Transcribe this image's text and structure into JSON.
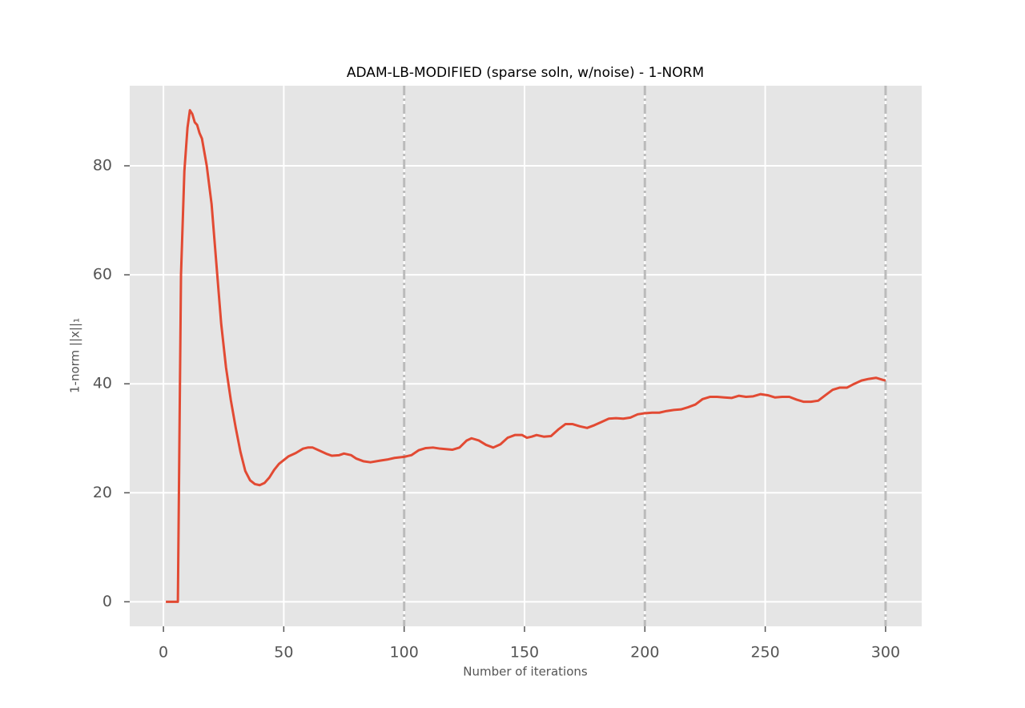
{
  "chart_data": {
    "type": "line",
    "title": "ADAM-LB-MODIFIED (sparse soln, w/noise) - 1-NORM",
    "xlabel": "Number of iterations",
    "ylabel": "1-norm ||x||₁",
    "x": [
      1,
      6,
      7.3,
      8.7,
      10,
      11,
      12,
      13,
      14,
      15,
      16,
      18,
      20,
      22,
      24,
      26,
      28,
      30,
      32,
      34,
      36,
      38,
      40,
      42,
      44,
      46,
      48,
      50,
      52,
      55,
      58,
      60,
      62,
      65,
      68,
      70,
      73,
      75,
      78,
      80,
      83,
      86,
      90,
      93,
      96,
      100,
      103,
      106,
      109,
      112,
      115,
      120,
      123,
      126,
      128,
      131,
      134,
      137,
      140,
      143,
      146,
      149,
      151,
      153,
      155,
      158,
      161,
      164,
      167,
      170,
      173,
      176,
      179,
      182,
      185,
      188,
      191,
      194,
      197,
      200,
      203,
      206,
      209,
      212,
      215,
      218,
      221,
      224,
      227,
      230,
      233,
      236,
      239,
      242,
      245,
      248,
      251,
      254,
      257,
      260,
      263,
      266,
      269,
      272,
      275,
      278,
      281,
      284,
      287,
      290,
      293,
      296,
      299,
      300
    ],
    "series": [
      {
        "color": "#e24a33",
        "values": [
          0,
          0,
          60,
          79,
          87,
          90.2,
          89.5,
          88,
          87.5,
          86,
          85,
          80,
          73,
          62,
          51,
          43,
          37,
          32,
          27.5,
          24,
          22.3,
          21.6,
          21.4,
          21.8,
          22.8,
          24.2,
          25.3,
          26,
          26.7,
          27.3,
          28.1,
          28.3,
          28.3,
          27.7,
          27.1,
          26.8,
          26.9,
          27.2,
          26.9,
          26.3,
          25.8,
          25.6,
          25.9,
          26.1,
          26.4,
          26.6,
          26.9,
          27.8,
          28.2,
          28.3,
          28.1,
          27.9,
          28.3,
          29.6,
          30,
          29.6,
          28.8,
          28.3,
          28.9,
          30.1,
          30.6,
          30.6,
          30.1,
          30.3,
          30.6,
          30.3,
          30.4,
          31.6,
          32.6,
          32.6,
          32.2,
          31.9,
          32.4,
          33,
          33.6,
          33.7,
          33.6,
          33.8,
          34.4,
          34.6,
          34.7,
          34.7,
          35,
          35.2,
          35.3,
          35.7,
          36.2,
          37.2,
          37.6,
          37.6,
          37.5,
          37.4,
          37.8,
          37.6,
          37.7,
          38.1,
          37.9,
          37.5,
          37.6,
          37.6,
          37.1,
          36.7,
          36.7,
          36.9,
          37.9,
          38.9,
          39.3,
          39.3,
          40,
          40.6,
          40.9,
          41.1,
          40.7,
          40.6
        ]
      }
    ],
    "xlim": [
      -14,
      315
    ],
    "xticks": [
      0,
      50,
      100,
      150,
      200,
      250,
      300
    ],
    "ylim": [
      -4.5,
      94.7
    ],
    "yticks": [
      0,
      20,
      40,
      60,
      80
    ],
    "vlines": [
      100,
      200,
      300
    ],
    "vline_color": "#bbbbbb",
    "grid": true,
    "background": "#e5e5e5"
  }
}
